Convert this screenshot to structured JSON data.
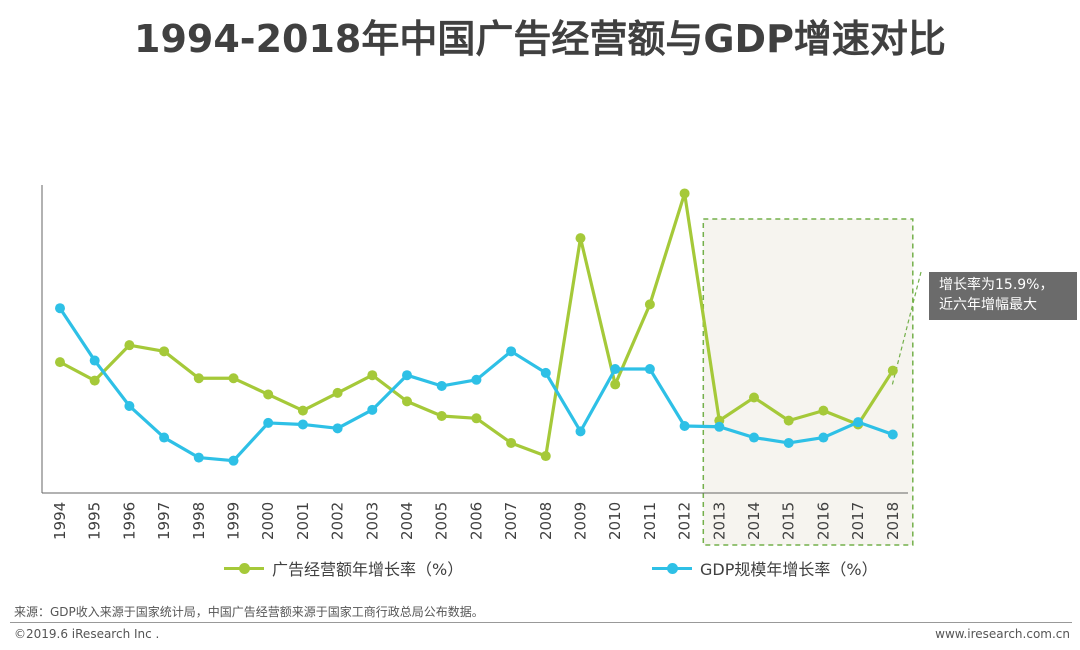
{
  "title": "1994-2018年中国广告经营额与GDP增速对比",
  "chart_data": {
    "type": "line",
    "title": "1994-2018年中国广告经营额与GDP增速对比",
    "categories": [
      "1994",
      "1995",
      "1996",
      "1997",
      "1998",
      "1999",
      "2000",
      "2001",
      "2002",
      "2003",
      "2004",
      "2005",
      "2006",
      "2007",
      "2008",
      "2009",
      "2010",
      "2011",
      "2012",
      "2013",
      "2014",
      "2015",
      "2016",
      "2017",
      "2018"
    ],
    "series": [
      {
        "name": "广告经营额年增长率（%）",
        "color": "#a5c939",
        "values": [
          17.0,
          14.6,
          19.2,
          18.4,
          14.9,
          14.9,
          12.8,
          10.7,
          13.0,
          15.3,
          11.9,
          10.0,
          9.7,
          6.5,
          4.8,
          33.1,
          14.1,
          24.5,
          38.9,
          9.4,
          12.4,
          9.4,
          10.7,
          8.9,
          15.9
        ]
      },
      {
        "name": "GDP规模年增长率（%）",
        "color": "#2ec0e6",
        "values": [
          24.0,
          17.2,
          11.3,
          7.2,
          4.6,
          4.2,
          9.1,
          8.9,
          8.4,
          10.8,
          15.3,
          13.9,
          14.7,
          18.4,
          15.6,
          8.0,
          16.1,
          16.1,
          8.7,
          8.6,
          7.2,
          6.5,
          7.2,
          9.2,
          7.6
        ]
      }
    ],
    "ylim": [
      0,
      40
    ],
    "xlabel": "",
    "ylabel": "",
    "highlight": {
      "from": "2013",
      "to": "2018",
      "fill": "#f6f4ef",
      "stroke": "#74b04b"
    },
    "legend_position": "bottom"
  },
  "callout": {
    "line1": "增长率为15.9%，",
    "line2": "近六年增幅最大"
  },
  "source": "来源：GDP收入来源于国家统计局，中国广告经营额来源于国家工商行政总局公布数据。",
  "copyright": "©2019.6 iResearch Inc .",
  "website": "www.iresearch.com.cn"
}
